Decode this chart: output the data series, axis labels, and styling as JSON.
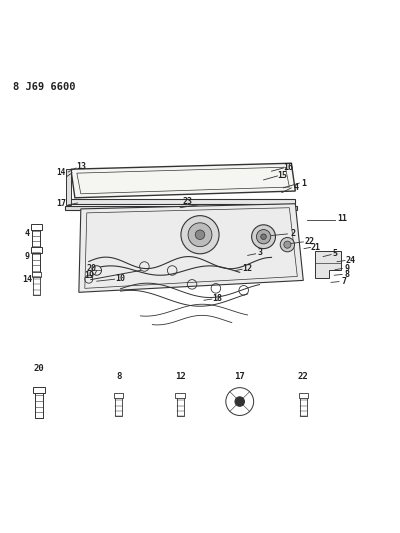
{
  "title": "8 J69 6600",
  "bg_color": "#ffffff",
  "line_color": "#333333",
  "text_color": "#222222"
}
